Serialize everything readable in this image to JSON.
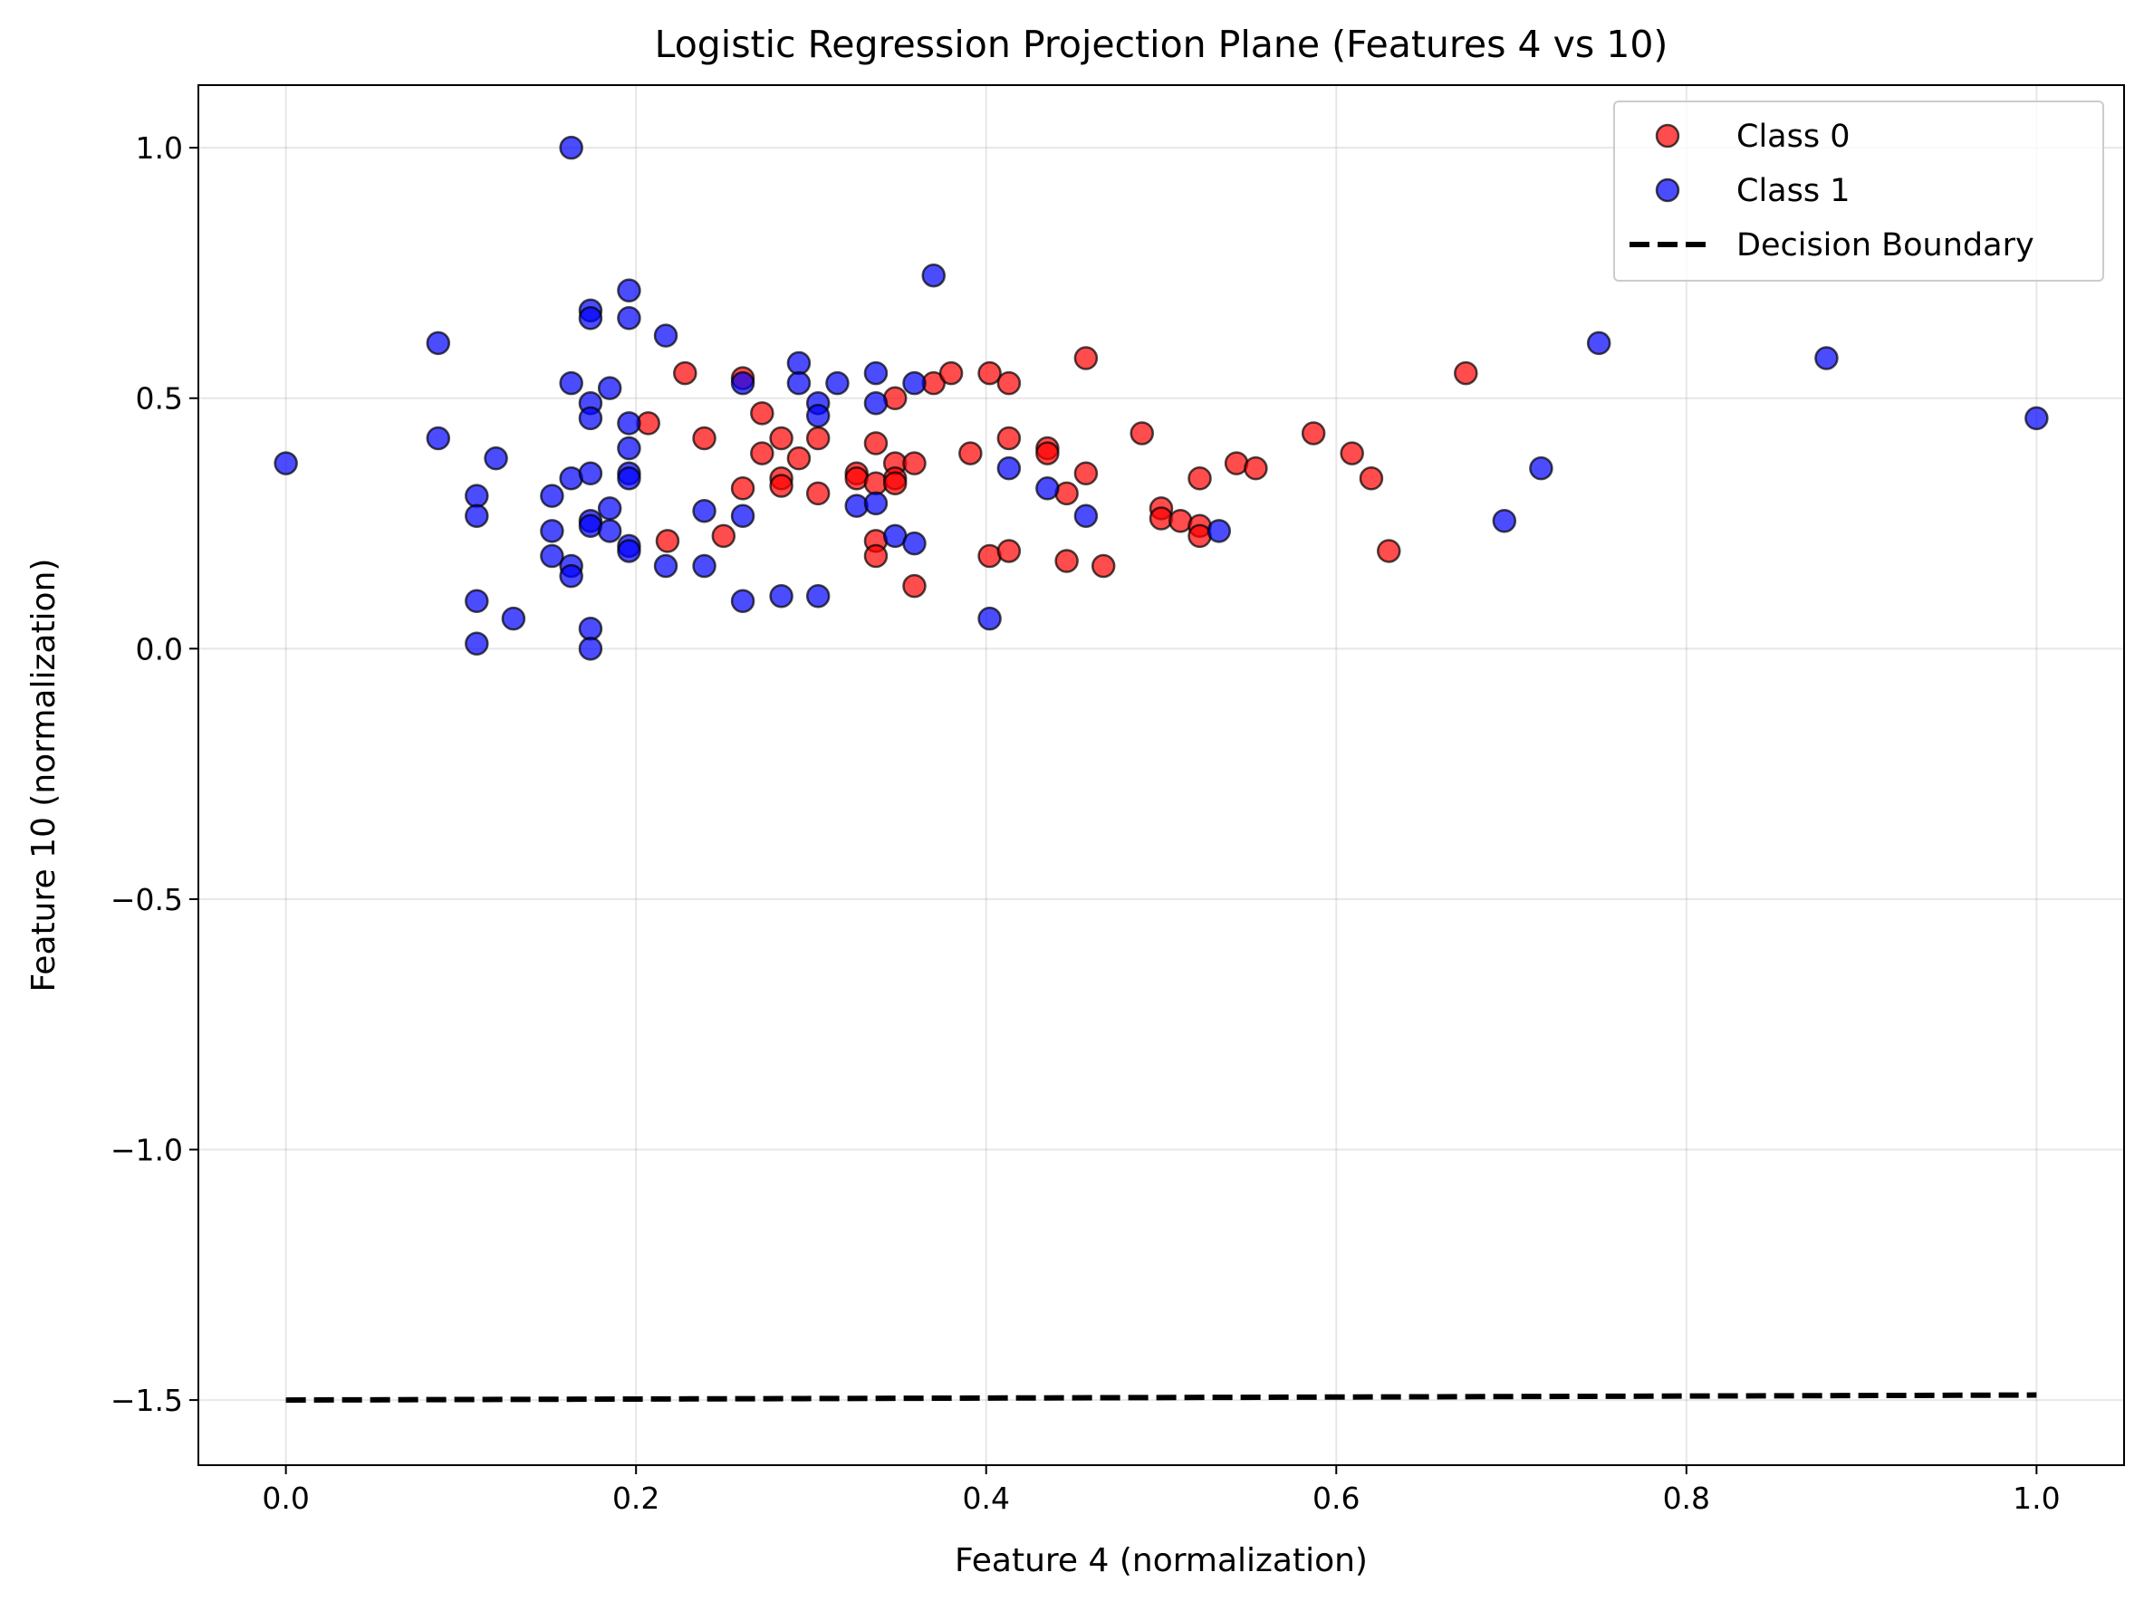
{
  "chart_data": {
    "type": "scatter",
    "title": "Logistic Regression Projection Plane (Features 4 vs 10)",
    "xlabel": "Feature 4 (normalization)",
    "ylabel": "Feature 10 (normalization)",
    "xlim": [
      -0.05,
      1.05
    ],
    "ylim": [
      -1.63,
      1.125
    ],
    "xticks": [
      0.0,
      0.2,
      0.4,
      0.6,
      0.8,
      1.0
    ],
    "xtick_labels": [
      "0.0",
      "0.2",
      "0.4",
      "0.6",
      "0.8",
      "1.0"
    ],
    "yticks": [
      1.0,
      0.5,
      0.0,
      -0.5,
      -1.0,
      -1.5
    ],
    "ytick_labels": [
      "1.0",
      "0.5",
      "0.0",
      "−0.5",
      "−1.0",
      "−1.5"
    ],
    "grid": true,
    "legend_position": "top-right",
    "series": [
      {
        "name": "Class 0",
        "color": "#ff0000",
        "marker": "circle",
        "points": [
          [
            0.207,
            0.45
          ],
          [
            0.218,
            0.215
          ],
          [
            0.228,
            0.55
          ],
          [
            0.239,
            0.42
          ],
          [
            0.25,
            0.225
          ],
          [
            0.261,
            0.54
          ],
          [
            0.261,
            0.32
          ],
          [
            0.272,
            0.47
          ],
          [
            0.272,
            0.39
          ],
          [
            0.283,
            0.42
          ],
          [
            0.283,
            0.34
          ],
          [
            0.283,
            0.325
          ],
          [
            0.293,
            0.38
          ],
          [
            0.304,
            0.42
          ],
          [
            0.304,
            0.31
          ],
          [
            0.326,
            0.35
          ],
          [
            0.326,
            0.34
          ],
          [
            0.337,
            0.41
          ],
          [
            0.337,
            0.33
          ],
          [
            0.337,
            0.215
          ],
          [
            0.337,
            0.185
          ],
          [
            0.348,
            0.5
          ],
          [
            0.348,
            0.37
          ],
          [
            0.348,
            0.34
          ],
          [
            0.348,
            0.33
          ],
          [
            0.359,
            0.37
          ],
          [
            0.359,
            0.125
          ],
          [
            0.37,
            0.53
          ],
          [
            0.38,
            0.55
          ],
          [
            0.391,
            0.39
          ],
          [
            0.402,
            0.55
          ],
          [
            0.402,
            0.185
          ],
          [
            0.413,
            0.53
          ],
          [
            0.413,
            0.42
          ],
          [
            0.413,
            0.195
          ],
          [
            0.435,
            0.4
          ],
          [
            0.435,
            0.39
          ],
          [
            0.446,
            0.31
          ],
          [
            0.446,
            0.175
          ],
          [
            0.457,
            0.58
          ],
          [
            0.457,
            0.35
          ],
          [
            0.467,
            0.165
          ],
          [
            0.489,
            0.43
          ],
          [
            0.5,
            0.28
          ],
          [
            0.5,
            0.26
          ],
          [
            0.511,
            0.255
          ],
          [
            0.522,
            0.34
          ],
          [
            0.522,
            0.245
          ],
          [
            0.522,
            0.225
          ],
          [
            0.543,
            0.37
          ],
          [
            0.554,
            0.36
          ],
          [
            0.587,
            0.43
          ],
          [
            0.609,
            0.39
          ],
          [
            0.62,
            0.34
          ],
          [
            0.63,
            0.195
          ],
          [
            0.674,
            0.55
          ]
        ]
      },
      {
        "name": "Class 1",
        "color": "#0000ff",
        "marker": "circle",
        "points": [
          [
            0.0,
            0.37
          ],
          [
            0.087,
            0.61
          ],
          [
            0.087,
            0.42
          ],
          [
            0.109,
            0.305
          ],
          [
            0.109,
            0.265
          ],
          [
            0.109,
            0.095
          ],
          [
            0.109,
            0.01
          ],
          [
            0.12,
            0.38
          ],
          [
            0.13,
            0.06
          ],
          [
            0.152,
            0.305
          ],
          [
            0.152,
            0.235
          ],
          [
            0.152,
            0.185
          ],
          [
            0.163,
            1.0
          ],
          [
            0.163,
            0.53
          ],
          [
            0.163,
            0.34
          ],
          [
            0.163,
            0.165
          ],
          [
            0.163,
            0.145
          ],
          [
            0.174,
            0.675
          ],
          [
            0.174,
            0.66
          ],
          [
            0.174,
            0.49
          ],
          [
            0.174,
            0.46
          ],
          [
            0.174,
            0.35
          ],
          [
            0.174,
            0.255
          ],
          [
            0.174,
            0.245
          ],
          [
            0.174,
            0.04
          ],
          [
            0.174,
            0.0
          ],
          [
            0.185,
            0.52
          ],
          [
            0.185,
            0.28
          ],
          [
            0.185,
            0.235
          ],
          [
            0.196,
            0.715
          ],
          [
            0.196,
            0.66
          ],
          [
            0.196,
            0.45
          ],
          [
            0.196,
            0.4
          ],
          [
            0.196,
            0.35
          ],
          [
            0.196,
            0.34
          ],
          [
            0.196,
            0.205
          ],
          [
            0.196,
            0.195
          ],
          [
            0.217,
            0.625
          ],
          [
            0.217,
            0.165
          ],
          [
            0.239,
            0.275
          ],
          [
            0.239,
            0.165
          ],
          [
            0.261,
            0.53
          ],
          [
            0.261,
            0.265
          ],
          [
            0.261,
            0.095
          ],
          [
            0.283,
            0.105
          ],
          [
            0.293,
            0.57
          ],
          [
            0.293,
            0.53
          ],
          [
            0.304,
            0.49
          ],
          [
            0.304,
            0.465
          ],
          [
            0.304,
            0.105
          ],
          [
            0.315,
            0.53
          ],
          [
            0.326,
            0.285
          ],
          [
            0.337,
            0.55
          ],
          [
            0.337,
            0.49
          ],
          [
            0.337,
            0.29
          ],
          [
            0.348,
            0.225
          ],
          [
            0.359,
            0.53
          ],
          [
            0.359,
            0.21
          ],
          [
            0.37,
            0.745
          ],
          [
            0.402,
            0.06
          ],
          [
            0.413,
            0.36
          ],
          [
            0.435,
            0.32
          ],
          [
            0.457,
            0.265
          ],
          [
            0.533,
            0.235
          ],
          [
            0.696,
            0.255
          ],
          [
            0.717,
            0.36
          ],
          [
            0.75,
            0.61
          ],
          [
            0.88,
            0.58
          ],
          [
            1.0,
            0.46
          ]
        ]
      },
      {
        "name": "Decision Boundary",
        "color": "#000000",
        "type": "line",
        "linestyle": "dashed",
        "points": [
          [
            0.0,
            -1.5
          ],
          [
            1.0,
            -1.49
          ]
        ]
      }
    ]
  }
}
